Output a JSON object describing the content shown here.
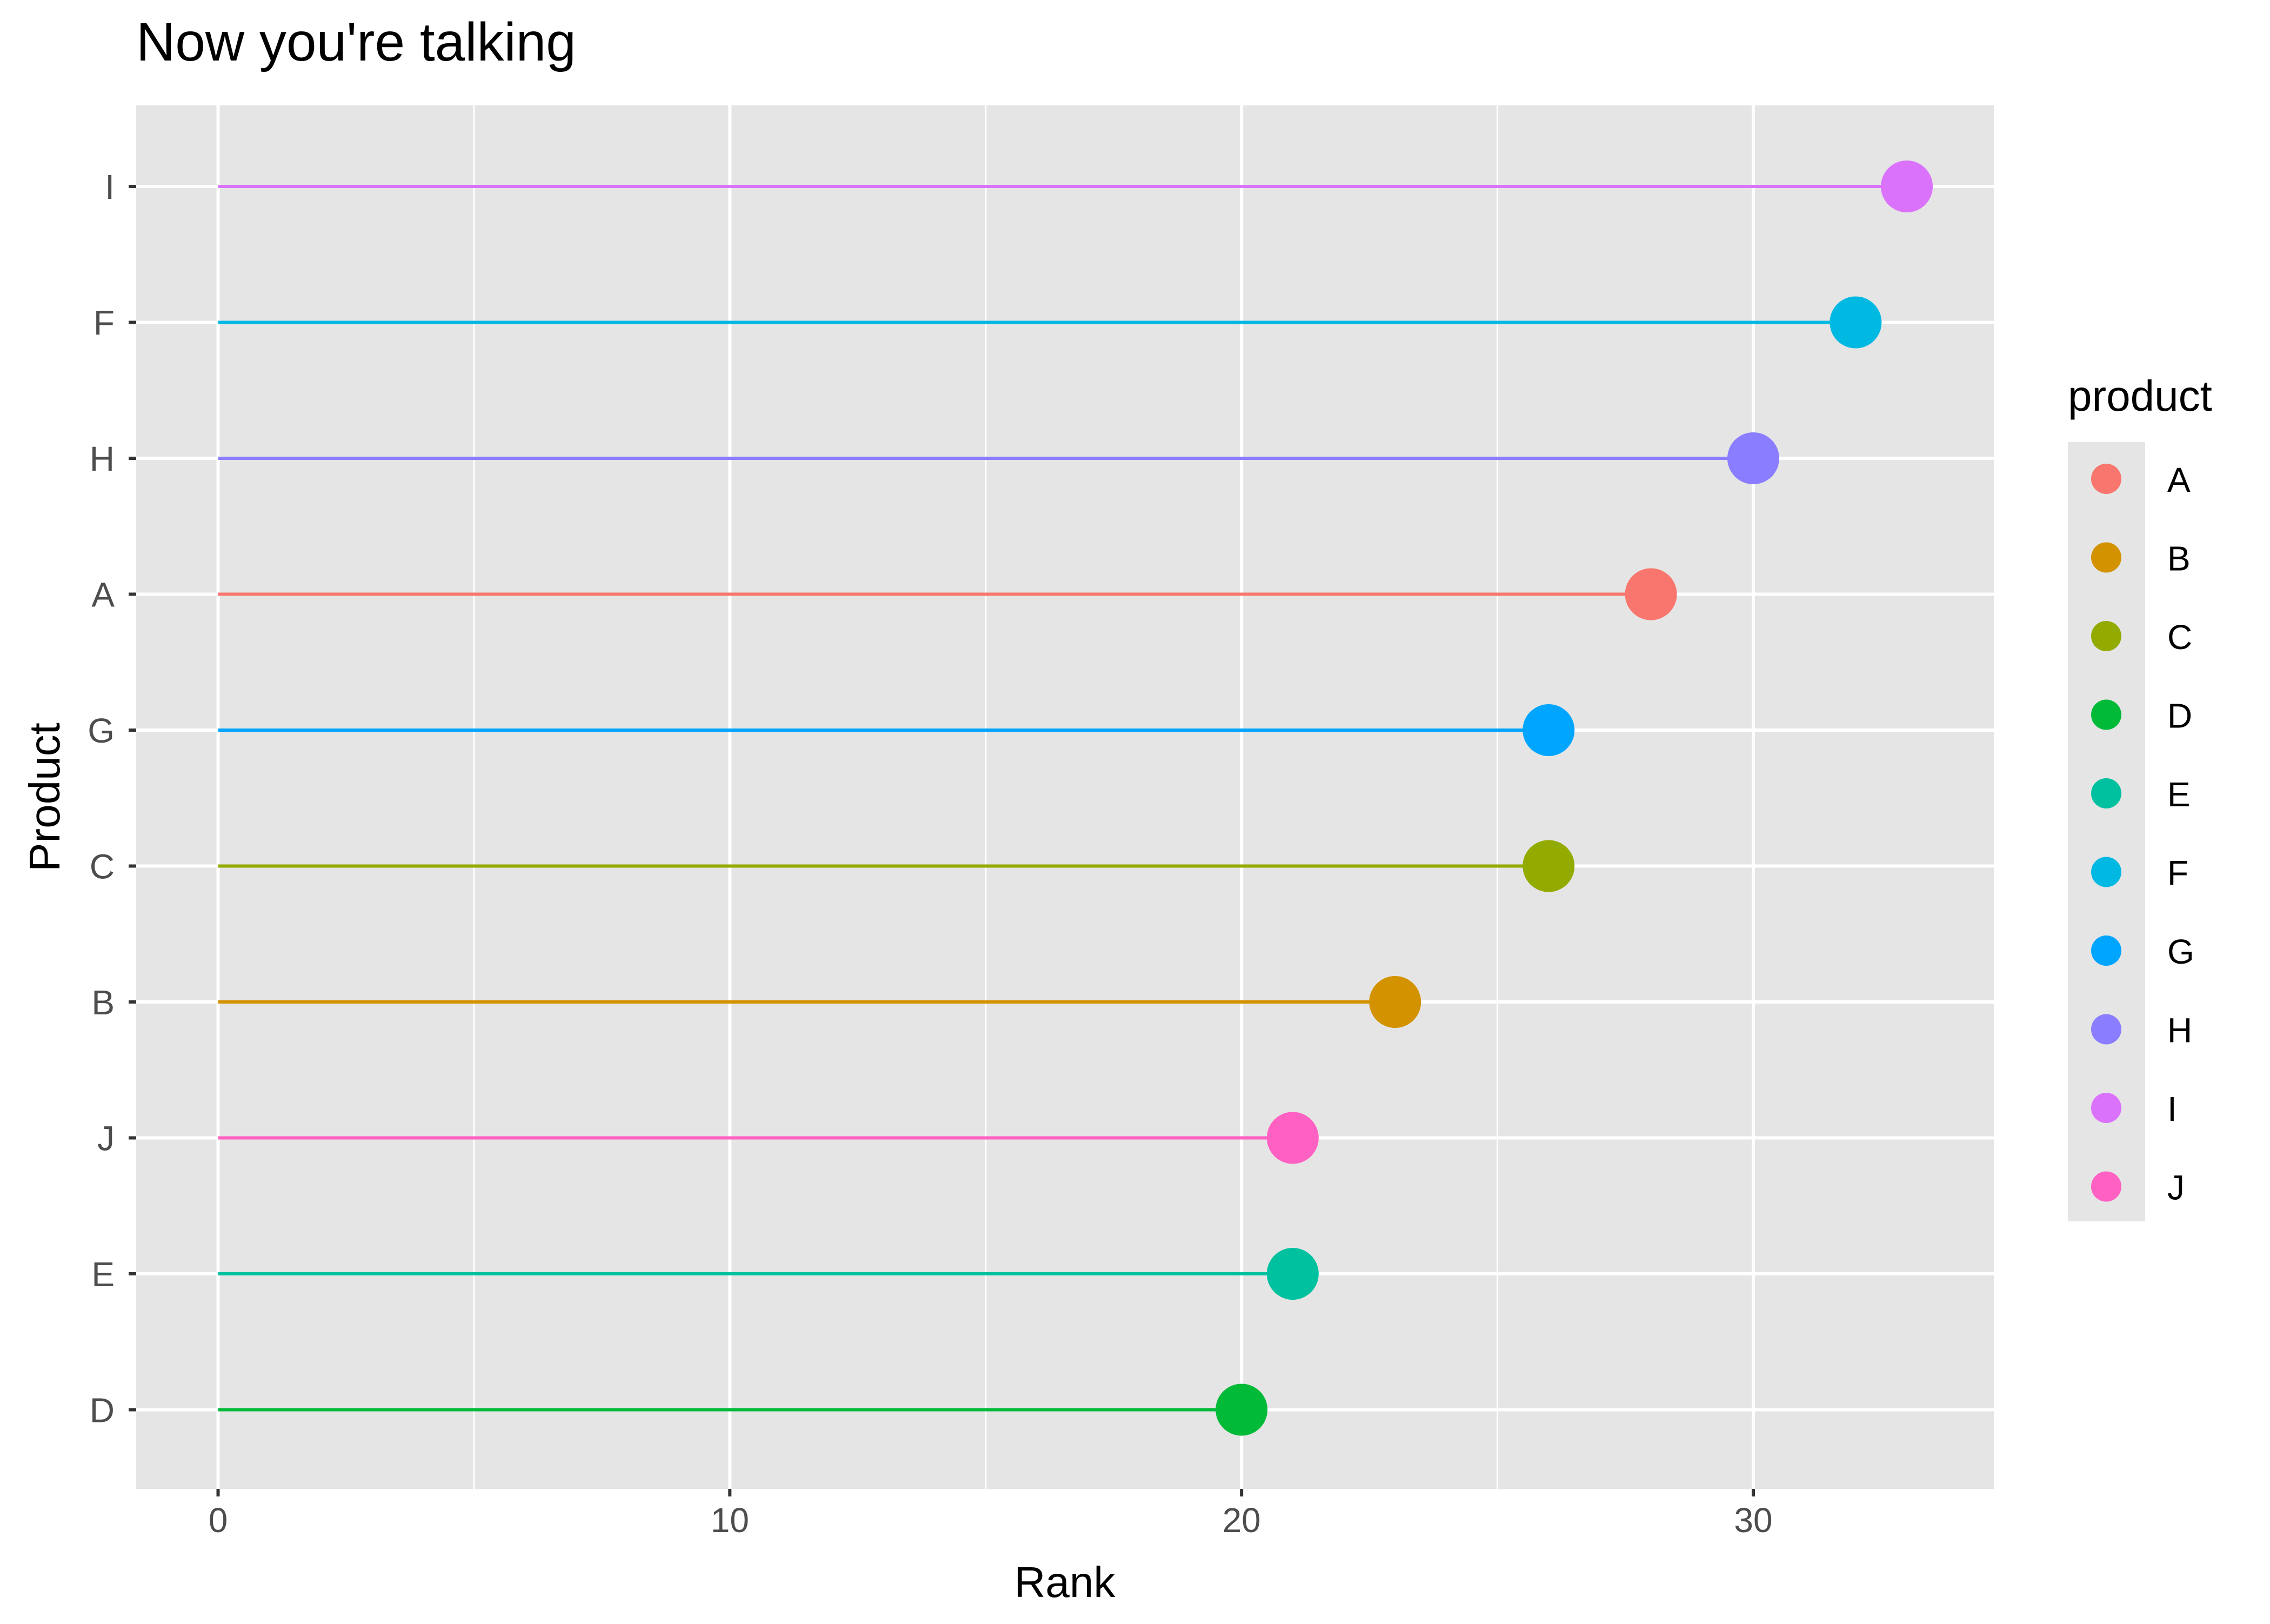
{
  "chart_data": {
    "type": "lollipop",
    "title": "Now you're talking",
    "xlabel": "Rank",
    "ylabel": "Product",
    "xlim": [
      -1.6,
      34.7
    ],
    "xticks": [
      0,
      10,
      20,
      30
    ],
    "grid": true,
    "legend": {
      "title": "product",
      "position": "right",
      "entries": [
        "A",
        "B",
        "C",
        "D",
        "E",
        "F",
        "G",
        "H",
        "I",
        "J"
      ]
    },
    "colors": {
      "A": "#F8766D",
      "B": "#D39200",
      "C": "#93AA00",
      "D": "#00BA38",
      "E": "#00C19F",
      "F": "#00B9E3",
      "G": "#00A5FF",
      "H": "#8B7DFF",
      "I": "#DB72FB",
      "J": "#FF61C3"
    },
    "categories": [
      "I",
      "F",
      "H",
      "A",
      "G",
      "C",
      "B",
      "J",
      "E",
      "D"
    ],
    "values": [
      33,
      32,
      30,
      28,
      26,
      26,
      23,
      21,
      21,
      20
    ]
  }
}
